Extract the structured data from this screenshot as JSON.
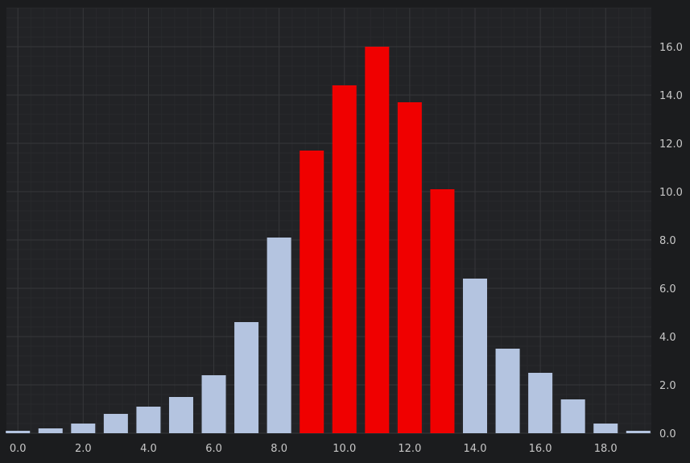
{
  "chart_data": {
    "type": "bar",
    "title": "",
    "xlabel": "",
    "ylabel": "",
    "x": [
      0,
      1,
      2,
      3,
      4,
      5,
      6,
      7,
      8,
      9,
      10,
      11,
      12,
      13,
      14,
      15,
      16,
      17,
      18,
      19
    ],
    "values": [
      0.1,
      0.2,
      0.4,
      0.8,
      1.1,
      1.5,
      2.4,
      4.6,
      8.1,
      11.7,
      14.4,
      16.0,
      13.7,
      10.1,
      6.4,
      3.5,
      2.5,
      1.4,
      0.4,
      0.1
    ],
    "highlighted_x": [
      9,
      10,
      11,
      12,
      13
    ],
    "xlim": [
      -0.35,
      19.4
    ],
    "ylim": [
      0,
      17.6
    ],
    "x_ticks": [
      0,
      2,
      4,
      6,
      8,
      10,
      12,
      14,
      16,
      18
    ],
    "x_tick_labels": [
      "0.0",
      "2.0",
      "4.0",
      "6.0",
      "8.0",
      "10.0",
      "12.0",
      "14.0",
      "16.0",
      "18.0"
    ],
    "y_ticks": [
      0,
      2,
      4,
      6,
      8,
      10,
      12,
      14,
      16
    ],
    "y_tick_labels": [
      "0.0",
      "2.0",
      "4.0",
      "6.0",
      "8.0",
      "10.0",
      "12.0",
      "14.0",
      "16.0"
    ],
    "y_axis_side": "right",
    "grid": true,
    "legend": "none",
    "colors": {
      "background": "#1b1c1e",
      "plot_background": "#222326",
      "grid_major": "#36373a",
      "grid_minor": "#28292c",
      "bar_default": "#b4c4e0",
      "bar_highlight": "#f00000",
      "tick_text": "#c8c8c8"
    }
  }
}
